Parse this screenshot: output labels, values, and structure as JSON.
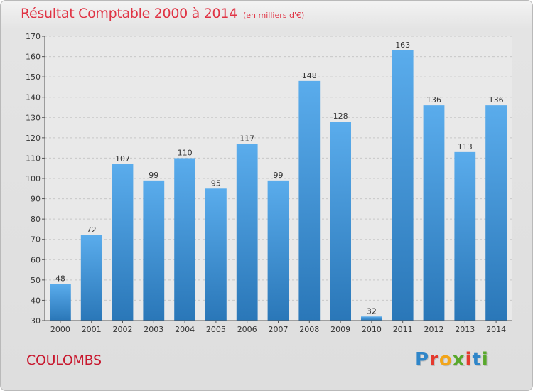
{
  "header": {
    "title": "Résultat Comptable 2000 à 2014",
    "subtitle": "(en milliers d'€)"
  },
  "footer": {
    "commune": "COULOMBS",
    "logo_text": "Proxiti",
    "logo_colors": [
      "#2f86c9",
      "#e53a2e",
      "#f2a51a",
      "#58a82b",
      "#e53a2e",
      "#2f86c9",
      "#58a82b"
    ]
  },
  "chart_data": {
    "type": "bar",
    "title": "Résultat Comptable 2000 à 2014",
    "subtitle": "(en milliers d'€)",
    "xlabel": "",
    "ylabel": "",
    "categories": [
      "2000",
      "2001",
      "2002",
      "2003",
      "2004",
      "2005",
      "2006",
      "2007",
      "2008",
      "2009",
      "2010",
      "2011",
      "2012",
      "2013",
      "2014"
    ],
    "values": [
      48,
      72,
      107,
      99,
      110,
      95,
      117,
      99,
      148,
      128,
      32,
      163,
      136,
      113,
      136
    ],
    "ylim": [
      30,
      170
    ],
    "yticks": [
      30,
      40,
      50,
      60,
      70,
      80,
      90,
      100,
      110,
      120,
      130,
      140,
      150,
      160,
      170
    ],
    "grid": true,
    "bar_color_top": "#5aacec",
    "bar_color_bottom": "#2a77b8"
  }
}
